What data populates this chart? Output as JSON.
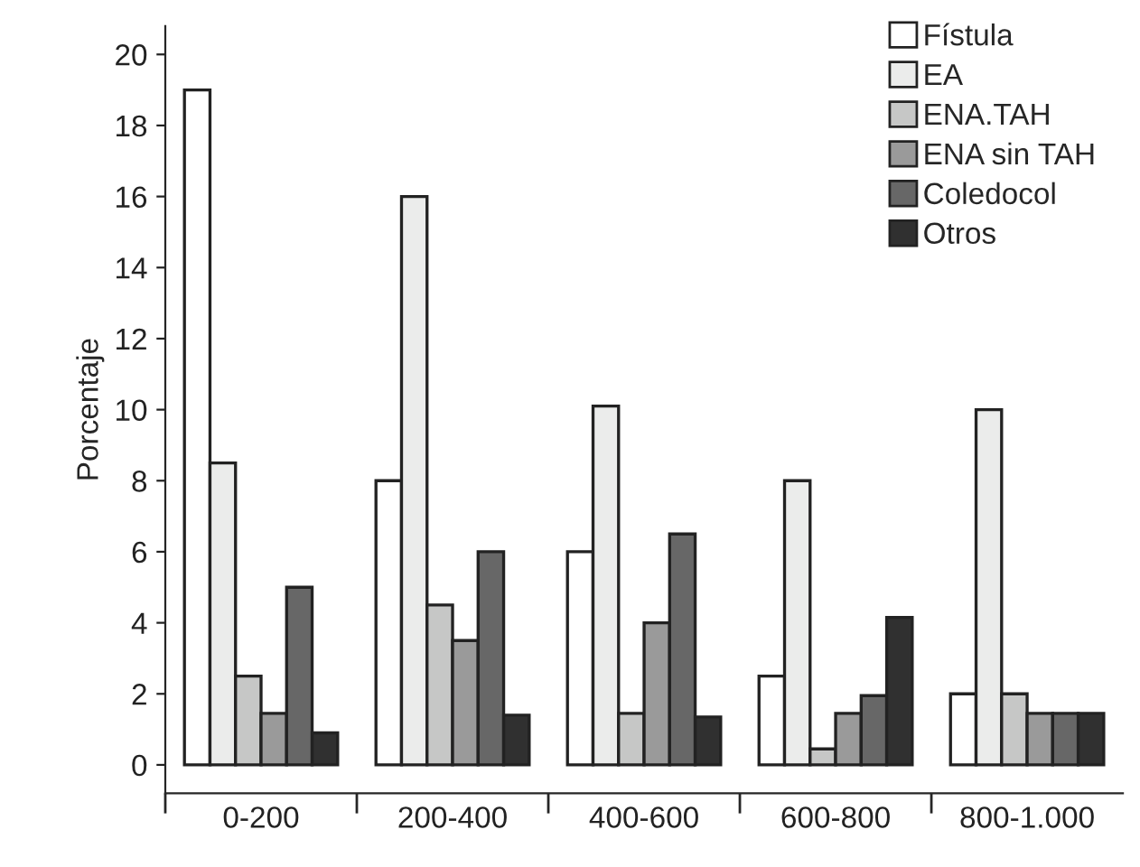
{
  "chart_data": {
    "type": "bar",
    "ylabel": "Porcentaje",
    "categories": [
      "0-200",
      "200-400",
      "400-600",
      "600-800",
      "800-1.000"
    ],
    "series": [
      {
        "name": "Fístula",
        "color": "#ffffff",
        "values": [
          19,
          8,
          6,
          2.5,
          2
        ]
      },
      {
        "name": "EA",
        "color": "#ebeceb",
        "values": [
          8.5,
          16,
          10.1,
          8,
          10
        ]
      },
      {
        "name": "ENA.TAH",
        "color": "#c6c7c6",
        "values": [
          2.5,
          4.5,
          1.45,
          0.45,
          2
        ]
      },
      {
        "name": "ENA sin TAH",
        "color": "#9a9a9a",
        "values": [
          1.45,
          3.5,
          4,
          1.45,
          1.45
        ]
      },
      {
        "name": "Coledocol",
        "color": "#676767",
        "values": [
          5,
          6,
          6.5,
          1.95,
          1.45
        ]
      },
      {
        "name": "Otros",
        "color": "#303030",
        "values": [
          0.9,
          1.4,
          1.35,
          4.15,
          1.45
        ]
      }
    ],
    "ylim": [
      -0.8,
      20.8
    ],
    "yticks": [
      0,
      2,
      4,
      6,
      8,
      10,
      12,
      14,
      16,
      18,
      20
    ],
    "grid": false,
    "legend": "top right"
  }
}
